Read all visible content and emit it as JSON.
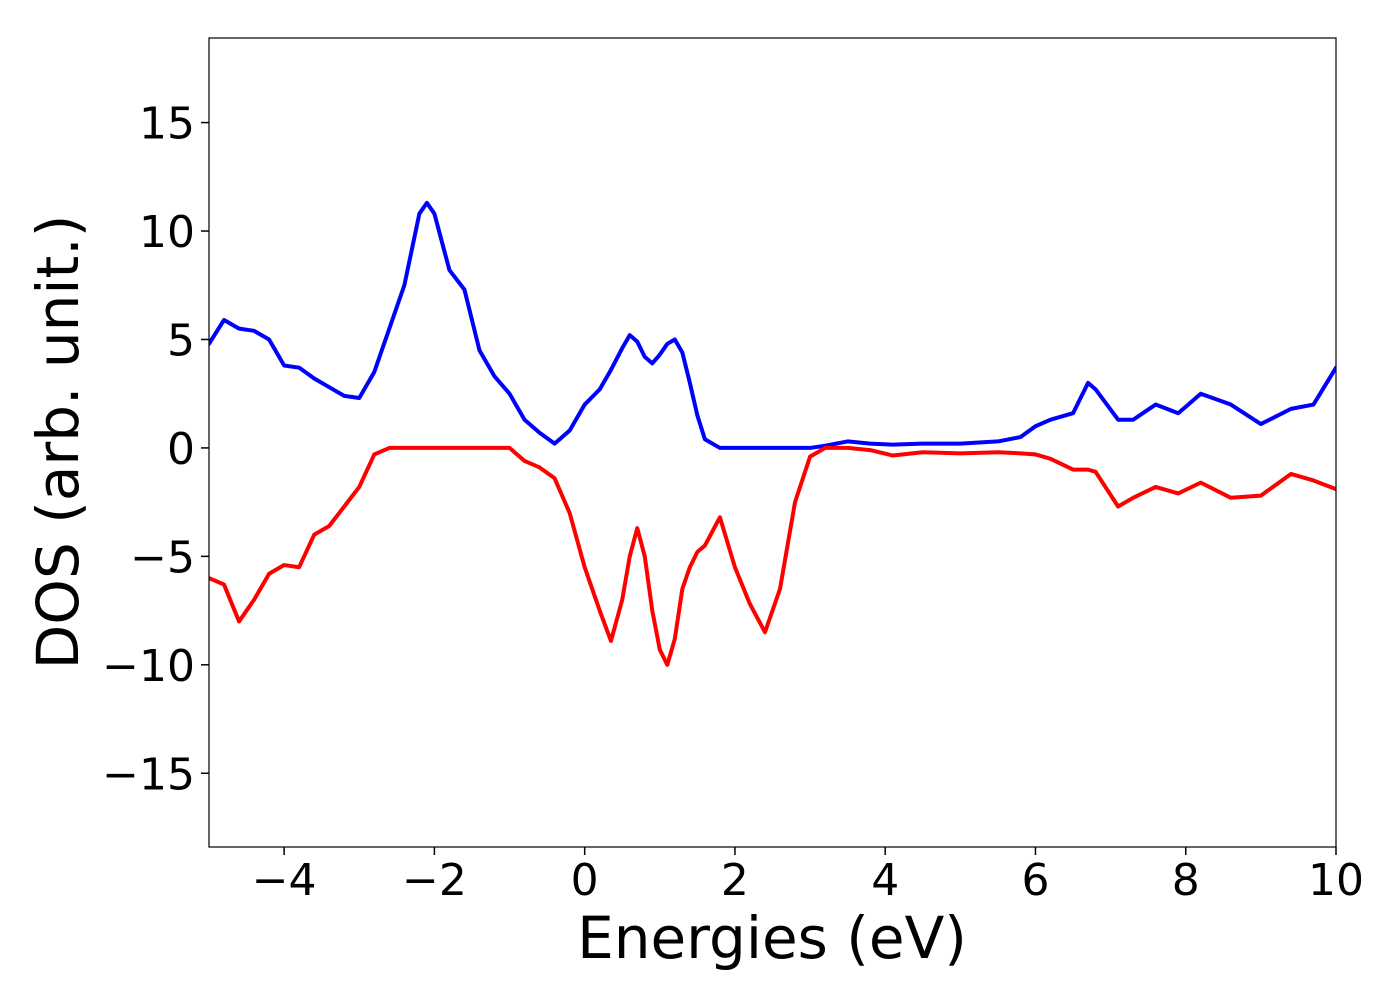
{
  "chart_data": {
    "type": "line",
    "x_label": "Energies (eV)",
    "y_label": "DOS (arb. unit.)",
    "x": [
      -5,
      -4.8,
      -4.6,
      -4.4,
      -4.2,
      -4,
      -3.8,
      -3.6,
      -3.4,
      -3.2,
      -3,
      -2.8,
      -2.6,
      -2.4,
      -2.2,
      -2.1,
      -2,
      -1.8,
      -1.6,
      -1.4,
      -1.2,
      -1,
      -0.8,
      -0.6,
      -0.4,
      -0.2,
      0,
      0.2,
      0.35,
      0.5,
      0.6,
      0.7,
      0.8,
      0.9,
      1,
      1.1,
      1.2,
      1.3,
      1.4,
      1.5,
      1.6,
      1.8,
      2,
      2.2,
      2.4,
      2.6,
      2.8,
      3,
      3.2,
      3.5,
      3.8,
      4.1,
      4.5,
      5,
      5.5,
      5.8,
      6,
      6.2,
      6.5,
      6.7,
      6.8,
      7.1,
      7.3,
      7.6,
      7.9,
      8.2,
      8.6,
      9,
      9.4,
      9.7,
      10
    ],
    "series": [
      {
        "color": "#0000ff",
        "values": [
          4.8,
          5.9,
          5.5,
          5.4,
          5.0,
          3.8,
          3.7,
          3.2,
          2.8,
          2.4,
          2.3,
          3.5,
          5.5,
          7.5,
          10.8,
          11.3,
          10.8,
          8.2,
          7.3,
          4.5,
          3.3,
          2.5,
          1.3,
          0.7,
          0.2,
          0.8,
          2.0,
          2.7,
          3.6,
          4.6,
          5.2,
          4.9,
          4.2,
          3.9,
          4.3,
          4.8,
          5.0,
          4.4,
          3.0,
          1.5,
          0.4,
          0,
          0,
          0,
          0,
          0,
          0,
          0,
          0.1,
          0.3,
          0.2,
          0.15,
          0.2,
          0.2,
          0.3,
          0.5,
          1.0,
          1.3,
          1.6,
          3.0,
          2.7,
          1.3,
          1.3,
          2.0,
          1.6,
          2.5,
          2.0,
          1.1,
          1.8,
          2.0,
          3.7
        ]
      },
      {
        "color": "#ff0000",
        "values": [
          -6.0,
          -6.3,
          -8.0,
          -7.0,
          -5.8,
          -5.4,
          -5.5,
          -4.0,
          -3.6,
          -2.7,
          -1.8,
          -0.3,
          0,
          0,
          0,
          0,
          0,
          0,
          0,
          0,
          0,
          0,
          -0.6,
          -0.9,
          -1.4,
          -3.0,
          -5.5,
          -7.5,
          -8.9,
          -7.0,
          -5.0,
          -3.7,
          -5.0,
          -7.5,
          -9.3,
          -10.0,
          -8.8,
          -6.5,
          -5.5,
          -4.8,
          -4.5,
          -3.2,
          -5.5,
          -7.2,
          -8.5,
          -6.5,
          -2.5,
          -0.4,
          0,
          0,
          -0.1,
          -0.35,
          -0.2,
          -0.25,
          -0.2,
          -0.25,
          -0.3,
          -0.5,
          -1.0,
          -1.0,
          -1.1,
          -2.7,
          -2.3,
          -1.8,
          -2.1,
          -1.6,
          -2.3,
          -2.2,
          -1.2,
          -1.5,
          -1.9
        ]
      }
    ],
    "xlim": [
      -5,
      10
    ],
    "xticks": [
      {
        "value": -4,
        "label": "−4"
      },
      {
        "value": -2,
        "label": "−2"
      },
      0,
      2,
      4,
      6,
      8,
      10
    ],
    "ylim": [
      -18.4,
      18.9
    ],
    "yticks": [
      {
        "value": -15,
        "label": "−15"
      },
      {
        "value": -10,
        "label": "−10"
      },
      {
        "value": -5,
        "label": "−5"
      },
      0,
      5,
      10,
      15
    ],
    "grid": false
  }
}
